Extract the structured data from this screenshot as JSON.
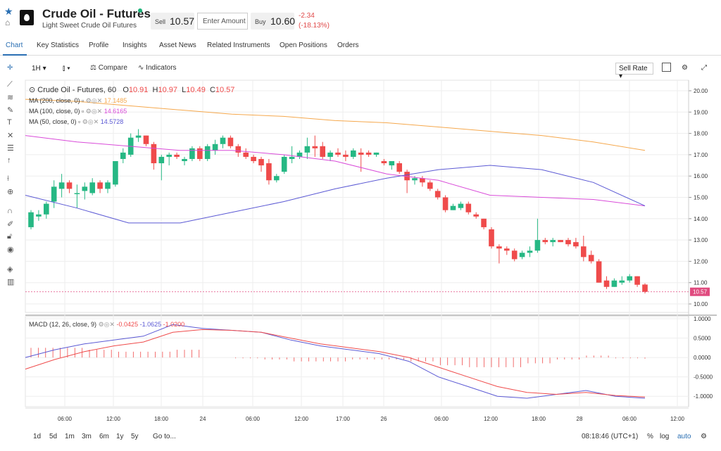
{
  "header": {
    "title": "Crude Oil - Futures",
    "subtitle": "Light Sweet Crude Oil Futures",
    "sell_label": "Sell",
    "sell_value": "10.57",
    "amount_placeholder": "Enter Amount",
    "buy_label": "Buy",
    "buy_value": "10.60",
    "change_abs": "-2.34",
    "change_pct": "(-18.13%)"
  },
  "tabs": [
    "Chart",
    "Key Statistics",
    "Profile",
    "Insights",
    "Asset News",
    "Related Instruments",
    "Open Positions",
    "Orders"
  ],
  "toolbar": {
    "interval": "1H",
    "compare": "Compare",
    "indicators": "Indicators",
    "sell_rate": "Sell Rate"
  },
  "legend": {
    "symbol": "Crude Oil - Futures, 60",
    "o_label": "O",
    "o_value": "10.91",
    "h_label": "H",
    "h_value": "10.97",
    "l_label": "L",
    "l_value": "10.49",
    "c_label": "C",
    "c_value": "10.57",
    "ma200_label": "MA (200, close, 0)",
    "ma200_value": "17.1485",
    "ma100_label": "MA (100, close, 0)",
    "ma100_value": "14.6165",
    "ma50_label": "MA (50, close, 0)",
    "ma50_value": "14.5728",
    "macd_label": "MACD (12, 26, close, 9)",
    "macd_v1": "-0.0425",
    "macd_v2": "-1.0625",
    "macd_v3": "-1.0200"
  },
  "bottombar": {
    "ranges": [
      "1d",
      "5d",
      "1m",
      "3m",
      "6m",
      "1y",
      "5y"
    ],
    "goto": "Go to...",
    "time": "08:18:46 (UTC+1)",
    "pct": "%",
    "log": "log",
    "auto": "auto"
  },
  "colors": {
    "up": "#26b884",
    "down": "#ef4b4b",
    "ma200": "#f5a84d",
    "ma100": "#d94bd9",
    "ma50": "#5b59d4",
    "accent": "#2a6fb3",
    "price_tag": "#e04b7f"
  },
  "chart_data": {
    "type": "candlestick",
    "price_axis": {
      "ticks": [
        "20.00",
        "19.00",
        "18.00",
        "17.00",
        "16.00",
        "15.00",
        "14.00",
        "13.00",
        "12.00",
        "11.00",
        "10.00"
      ],
      "range": [
        10.0,
        20.0
      ],
      "last_price": "10.57"
    },
    "time_axis": {
      "labels": [
        "06:00",
        "12:00",
        "18:00",
        "24",
        "06:00",
        "12:00",
        "17:00",
        "26",
        "06:00",
        "12:00",
        "18:00",
        "28",
        "06:00",
        "12:00"
      ]
    },
    "candles": [
      {
        "o": 13.6,
        "h": 14.4,
        "l": 13.5,
        "c": 14.3
      },
      {
        "o": 14.1,
        "h": 14.4,
        "l": 13.9,
        "c": 14.2
      },
      {
        "o": 14.2,
        "h": 14.8,
        "l": 14.0,
        "c": 14.7
      },
      {
        "o": 14.8,
        "h": 15.8,
        "l": 14.5,
        "c": 15.5
      },
      {
        "o": 15.4,
        "h": 16.1,
        "l": 15.0,
        "c": 15.7
      },
      {
        "o": 15.7,
        "h": 15.8,
        "l": 15.2,
        "c": 15.4
      },
      {
        "o": 15.2,
        "h": 15.6,
        "l": 14.5,
        "c": 15.2
      },
      {
        "o": 15.3,
        "h": 15.7,
        "l": 14.9,
        "c": 15.5
      },
      {
        "o": 15.2,
        "h": 15.9,
        "l": 15.1,
        "c": 15.7
      },
      {
        "o": 15.7,
        "h": 15.8,
        "l": 15.2,
        "c": 15.4
      },
      {
        "o": 15.4,
        "h": 15.8,
        "l": 15.2,
        "c": 15.7
      },
      {
        "o": 15.6,
        "h": 16.7,
        "l": 15.5,
        "c": 16.7
      },
      {
        "o": 16.8,
        "h": 17.3,
        "l": 16.6,
        "c": 17.1
      },
      {
        "o": 17.0,
        "h": 18.0,
        "l": 16.9,
        "c": 17.8
      },
      {
        "o": 17.8,
        "h": 18.2,
        "l": 17.6,
        "c": 17.9
      },
      {
        "o": 17.9,
        "h": 17.9,
        "l": 17.4,
        "c": 17.5
      },
      {
        "o": 17.5,
        "h": 17.6,
        "l": 16.3,
        "c": 16.6
      },
      {
        "o": 16.6,
        "h": 17.0,
        "l": 15.8,
        "c": 16.9
      },
      {
        "o": 16.9,
        "h": 17.1,
        "l": 16.5,
        "c": 17.0
      },
      {
        "o": 17.0,
        "h": 17.1,
        "l": 16.8,
        "c": 16.9
      },
      {
        "o": 16.7,
        "h": 16.9,
        "l": 16.5,
        "c": 16.8
      },
      {
        "o": 16.8,
        "h": 17.4,
        "l": 16.7,
        "c": 17.3
      },
      {
        "o": 17.3,
        "h": 17.4,
        "l": 16.7,
        "c": 16.8
      },
      {
        "o": 16.8,
        "h": 17.5,
        "l": 16.7,
        "c": 17.4
      },
      {
        "o": 17.2,
        "h": 17.7,
        "l": 17.0,
        "c": 17.5
      },
      {
        "o": 17.5,
        "h": 17.9,
        "l": 17.3,
        "c": 17.8
      },
      {
        "o": 17.8,
        "h": 17.9,
        "l": 17.3,
        "c": 17.4
      },
      {
        "o": 17.4,
        "h": 17.5,
        "l": 16.9,
        "c": 17.1
      },
      {
        "o": 17.1,
        "h": 17.3,
        "l": 16.8,
        "c": 16.9
      },
      {
        "o": 16.9,
        "h": 17.0,
        "l": 16.6,
        "c": 16.7
      },
      {
        "o": 16.8,
        "h": 16.9,
        "l": 16.2,
        "c": 16.5
      },
      {
        "o": 16.6,
        "h": 16.8,
        "l": 15.6,
        "c": 15.8
      },
      {
        "o": 15.8,
        "h": 16.1,
        "l": 15.7,
        "c": 16.0
      },
      {
        "o": 16.2,
        "h": 17.0,
        "l": 16.1,
        "c": 16.9
      },
      {
        "o": 16.8,
        "h": 17.4,
        "l": 16.6,
        "c": 16.9
      },
      {
        "o": 16.9,
        "h": 17.2,
        "l": 16.8,
        "c": 17.1
      },
      {
        "o": 17.1,
        "h": 17.8,
        "l": 16.8,
        "c": 17.4
      },
      {
        "o": 17.4,
        "h": 17.9,
        "l": 16.9,
        "c": 17.3
      },
      {
        "o": 17.4,
        "h": 17.6,
        "l": 16.8,
        "c": 16.9
      },
      {
        "o": 16.9,
        "h": 17.2,
        "l": 16.7,
        "c": 17.1
      },
      {
        "o": 17.1,
        "h": 17.3,
        "l": 16.9,
        "c": 17.0
      },
      {
        "o": 17.0,
        "h": 17.2,
        "l": 16.7,
        "c": 16.9
      },
      {
        "o": 16.9,
        "h": 17.3,
        "l": 16.8,
        "c": 17.2
      },
      {
        "o": 17.1,
        "h": 17.3,
        "l": 16.2,
        "c": 17.0
      },
      {
        "o": 17.1,
        "h": 17.2,
        "l": 16.9,
        "c": 17.0
      },
      {
        "o": 17.0,
        "h": 17.1,
        "l": 16.9,
        "c": 17.1
      },
      {
        "o": 16.7,
        "h": 16.8,
        "l": 16.5,
        "c": 16.6
      },
      {
        "o": 16.5,
        "h": 16.7,
        "l": 16.3,
        "c": 16.7
      },
      {
        "o": 16.6,
        "h": 16.7,
        "l": 16.1,
        "c": 16.2
      },
      {
        "o": 16.2,
        "h": 16.3,
        "l": 15.2,
        "c": 15.8
      },
      {
        "o": 15.8,
        "h": 16.0,
        "l": 15.6,
        "c": 15.9
      },
      {
        "o": 15.9,
        "h": 16.0,
        "l": 15.5,
        "c": 15.7
      },
      {
        "o": 15.7,
        "h": 15.8,
        "l": 15.3,
        "c": 15.4
      },
      {
        "o": 15.3,
        "h": 15.4,
        "l": 14.9,
        "c": 15.0
      },
      {
        "o": 15.0,
        "h": 15.1,
        "l": 14.3,
        "c": 14.4
      },
      {
        "o": 14.4,
        "h": 14.7,
        "l": 14.4,
        "c": 14.6
      },
      {
        "o": 14.5,
        "h": 14.8,
        "l": 14.4,
        "c": 14.7
      },
      {
        "o": 14.7,
        "h": 14.8,
        "l": 14.2,
        "c": 14.3
      },
      {
        "o": 14.2,
        "h": 14.3,
        "l": 14.0,
        "c": 14.1
      },
      {
        "o": 14.0,
        "h": 14.0,
        "l": 13.5,
        "c": 13.6
      },
      {
        "o": 13.5,
        "h": 13.6,
        "l": 12.6,
        "c": 12.7
      },
      {
        "o": 12.7,
        "h": 12.8,
        "l": 11.9,
        "c": 12.6
      },
      {
        "o": 12.6,
        "h": 12.7,
        "l": 12.3,
        "c": 12.5
      },
      {
        "o": 12.5,
        "h": 12.6,
        "l": 12.0,
        "c": 12.1
      },
      {
        "o": 12.2,
        "h": 12.5,
        "l": 12.1,
        "c": 12.4
      },
      {
        "o": 12.4,
        "h": 12.7,
        "l": 12.2,
        "c": 12.5
      },
      {
        "o": 12.5,
        "h": 14.0,
        "l": 12.4,
        "c": 13.0
      },
      {
        "o": 13.0,
        "h": 13.1,
        "l": 12.8,
        "c": 12.9
      },
      {
        "o": 12.9,
        "h": 13.1,
        "l": 12.7,
        "c": 13.0
      },
      {
        "o": 13.0,
        "h": 13.0,
        "l": 12.9,
        "c": 12.9
      },
      {
        "o": 13.0,
        "h": 13.1,
        "l": 12.7,
        "c": 12.8
      },
      {
        "o": 12.9,
        "h": 13.1,
        "l": 12.6,
        "c": 12.7
      },
      {
        "o": 12.7,
        "h": 13.2,
        "l": 12.0,
        "c": 12.2
      },
      {
        "o": 12.3,
        "h": 12.5,
        "l": 11.9,
        "c": 12.0
      },
      {
        "o": 12.0,
        "h": 12.1,
        "l": 11.0,
        "c": 11.0
      },
      {
        "o": 11.1,
        "h": 11.3,
        "l": 10.7,
        "c": 10.8
      },
      {
        "o": 10.8,
        "h": 11.2,
        "l": 10.8,
        "c": 11.1
      },
      {
        "o": 11.0,
        "h": 11.3,
        "l": 10.9,
        "c": 11.1
      },
      {
        "o": 11.1,
        "h": 11.4,
        "l": 11.0,
        "c": 11.3
      },
      {
        "o": 11.3,
        "h": 11.3,
        "l": 10.8,
        "c": 10.9
      },
      {
        "o": 10.91,
        "h": 10.97,
        "l": 10.49,
        "c": 10.57
      }
    ],
    "ma200": [
      19.6,
      19.5,
      19.3,
      19.1,
      18.9,
      18.8,
      18.6,
      18.5,
      18.3,
      18.1,
      17.9,
      17.6,
      17.2
    ],
    "ma100": [
      17.9,
      17.6,
      17.4,
      17.2,
      17.2,
      17.0,
      16.7,
      16.1,
      15.8,
      15.1,
      15.0,
      14.9,
      14.6
    ],
    "ma50": [
      15.1,
      14.5,
      13.8,
      13.8,
      14.3,
      14.8,
      15.4,
      15.9,
      16.3,
      16.5,
      16.3,
      15.7,
      14.6
    ],
    "macd_axis": {
      "ticks": [
        "1.0000",
        "0.5000",
        "0.0000",
        "-0.5000",
        "-1.0000"
      ],
      "range": [
        -1.25,
        1.0
      ]
    },
    "macd_line": [
      0.0,
      0.2,
      0.35,
      0.45,
      0.55,
      0.85,
      0.75,
      0.7,
      0.65,
      0.45,
      0.3,
      0.2,
      0.1,
      -0.1,
      -0.5,
      -0.75,
      -1.0,
      -1.05,
      -0.95,
      -0.85,
      -1.0,
      -1.05
    ],
    "macd_signal": [
      -0.3,
      -0.05,
      0.15,
      0.3,
      0.4,
      0.65,
      0.72,
      0.7,
      0.65,
      0.5,
      0.35,
      0.25,
      0.15,
      0.0,
      -0.25,
      -0.5,
      -0.75,
      -0.9,
      -0.95,
      -0.9,
      -0.98,
      -1.02
    ],
    "macd_hist": [
      0.25,
      0.25,
      0.2,
      0.15,
      0.15,
      0.2,
      0.0,
      -0.02,
      -0.05,
      -0.1,
      -0.1,
      -0.05,
      -0.05,
      -0.1,
      -0.2,
      -0.25,
      -0.25,
      -0.15,
      -0.05,
      0.05,
      -0.02,
      -0.03
    ]
  }
}
